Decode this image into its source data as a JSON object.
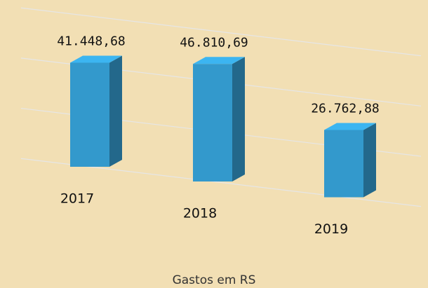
{
  "chart_data": {
    "type": "bar3d",
    "categories": [
      "2017",
      "2018",
      "2019"
    ],
    "values": [
      41448.68,
      46810.69,
      26762.88
    ],
    "value_labels": [
      "41.448,68",
      "46.810,69",
      "26.762,88"
    ],
    "x_label": "Gastos em RS",
    "color": "#3399cc",
    "ylim": [
      0,
      60000
    ],
    "yticks": [
      0,
      20000,
      40000,
      60000
    ],
    "grid": true
  }
}
